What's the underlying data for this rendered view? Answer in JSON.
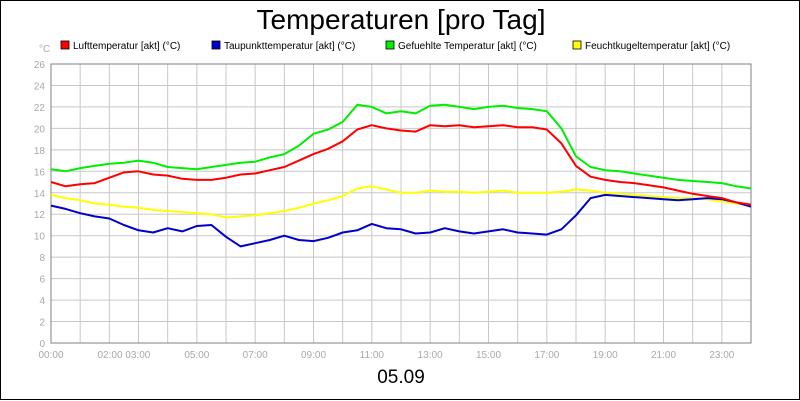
{
  "chart_data": {
    "type": "line",
    "title": "Temperaturen [pro Tag]",
    "xlabel": "05.09",
    "ylabel": "°C",
    "ylim": [
      0,
      26
    ],
    "xlim": [
      0,
      24
    ],
    "yticks": [
      0,
      2,
      4,
      6,
      8,
      10,
      12,
      14,
      16,
      18,
      20,
      22,
      24,
      26
    ],
    "xticks": [
      {
        "pos": 0,
        "label": "00:00"
      },
      {
        "pos": 2.5,
        "label": "02:00 03:00"
      },
      {
        "pos": 5,
        "label": "05:00"
      },
      {
        "pos": 7,
        "label": "07:00"
      },
      {
        "pos": 9,
        "label": "09:00"
      },
      {
        "pos": 11,
        "label": "11:00"
      },
      {
        "pos": 13,
        "label": "13:00"
      },
      {
        "pos": 15,
        "label": "15:00"
      },
      {
        "pos": 17,
        "label": "17:00"
      },
      {
        "pos": 19,
        "label": "19:00"
      },
      {
        "pos": 21,
        "label": "21:00"
      },
      {
        "pos": 23,
        "label": "23:00"
      }
    ],
    "grid": true,
    "x": [
      0,
      0.5,
      1,
      1.5,
      2,
      2.5,
      3,
      3.5,
      4,
      4.5,
      5,
      5.5,
      6,
      6.5,
      7,
      7.5,
      8,
      8.5,
      9,
      9.5,
      10,
      10.5,
      11,
      11.5,
      12,
      12.5,
      13,
      13.5,
      14,
      14.5,
      15,
      15.5,
      16,
      16.5,
      17,
      17.5,
      18,
      18.5,
      19,
      19.5,
      20,
      20.5,
      21,
      21.5,
      22,
      22.5,
      23,
      23.5,
      24
    ],
    "series": [
      {
        "name": "Lufttemperatur [akt] (°C)",
        "color": "#ff0000",
        "values": [
          15.0,
          14.6,
          14.8,
          14.9,
          15.4,
          15.9,
          16.0,
          15.7,
          15.6,
          15.3,
          15.2,
          15.2,
          15.4,
          15.7,
          15.8,
          16.1,
          16.4,
          17.0,
          17.6,
          18.1,
          18.8,
          19.9,
          20.3,
          20.0,
          19.8,
          19.7,
          20.3,
          20.2,
          20.3,
          20.1,
          20.2,
          20.3,
          20.1,
          20.1,
          19.9,
          18.6,
          16.5,
          15.5,
          15.2,
          15.0,
          14.9,
          14.7,
          14.5,
          14.2,
          13.9,
          13.7,
          13.5,
          13.1,
          12.9
        ]
      },
      {
        "name": "Taupunkttemperatur [akt] (°C)",
        "color": "#0000cc",
        "values": [
          12.8,
          12.5,
          12.1,
          11.8,
          11.6,
          11.0,
          10.5,
          10.3,
          10.7,
          10.4,
          10.9,
          11.0,
          9.9,
          9.0,
          9.3,
          9.6,
          10.0,
          9.6,
          9.5,
          9.8,
          10.3,
          10.5,
          11.1,
          10.7,
          10.6,
          10.2,
          10.3,
          10.7,
          10.4,
          10.2,
          10.4,
          10.6,
          10.3,
          10.2,
          10.1,
          10.6,
          11.9,
          13.5,
          13.8,
          13.7,
          13.6,
          13.5,
          13.4,
          13.3,
          13.4,
          13.5,
          13.4,
          13.1,
          12.7
        ]
      },
      {
        "name": "Gefuehlte Temperatur [akt] (°C)",
        "color": "#00ee00",
        "values": [
          16.2,
          16.0,
          16.3,
          16.5,
          16.7,
          16.8,
          17.0,
          16.8,
          16.4,
          16.3,
          16.2,
          16.4,
          16.6,
          16.8,
          16.9,
          17.3,
          17.6,
          18.4,
          19.5,
          19.9,
          20.6,
          22.2,
          22.0,
          21.4,
          21.6,
          21.4,
          22.1,
          22.2,
          22.0,
          21.8,
          22.0,
          22.1,
          21.9,
          21.8,
          21.6,
          20.0,
          17.4,
          16.4,
          16.1,
          16.0,
          15.8,
          15.6,
          15.4,
          15.2,
          15.1,
          15.0,
          14.9,
          14.6,
          14.4
        ]
      },
      {
        "name": "Feuchtkugeltemperatur [akt] (°C)",
        "color": "#ffff00",
        "values": [
          13.8,
          13.5,
          13.3,
          13.0,
          12.9,
          12.7,
          12.6,
          12.4,
          12.3,
          12.2,
          12.1,
          12.0,
          11.7,
          11.8,
          11.9,
          12.1,
          12.3,
          12.6,
          13.0,
          13.3,
          13.7,
          14.4,
          14.6,
          14.3,
          14.0,
          14.0,
          14.2,
          14.1,
          14.1,
          14.0,
          14.1,
          14.2,
          14.0,
          14.0,
          14.0,
          14.1,
          14.3,
          14.2,
          14.0,
          13.9,
          13.8,
          13.7,
          13.6,
          13.5,
          13.5,
          13.4,
          13.2,
          13.0,
          12.8
        ]
      }
    ]
  }
}
